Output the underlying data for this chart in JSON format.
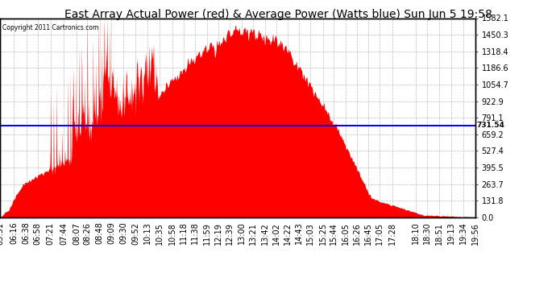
{
  "title": "East Array Actual Power (red) & Average Power (Watts blue) Sun Jun 5 19:58",
  "copyright": "Copyright 2011 Cartronics.com",
  "average_power": 731.54,
  "ymax": 1582.1,
  "yticks": [
    0.0,
    131.8,
    263.7,
    395.5,
    527.4,
    659.2,
    791.1,
    922.9,
    1054.7,
    1186.6,
    1318.4,
    1450.3,
    1582.1
  ],
  "xtick_labels": [
    "05:51",
    "06:16",
    "06:38",
    "06:58",
    "07:21",
    "07:44",
    "08:07",
    "08:26",
    "08:48",
    "09:09",
    "09:30",
    "09:52",
    "10:13",
    "10:35",
    "10:58",
    "11:18",
    "11:38",
    "11:59",
    "12:19",
    "12:39",
    "13:00",
    "13:21",
    "13:42",
    "14:02",
    "14:22",
    "14:43",
    "15:03",
    "15:25",
    "15:44",
    "16:05",
    "16:26",
    "16:45",
    "17:05",
    "17:28",
    "18:10",
    "18:30",
    "18:51",
    "19:13",
    "19:34",
    "19:56"
  ],
  "background_color": "#ffffff",
  "plot_bg_color": "#ffffff",
  "grid_color": "#aaaaaa",
  "fill_color": "#ff0000",
  "line_color": "#0000ff",
  "title_fontsize": 10,
  "tick_fontsize": 7,
  "total_minutes": 845
}
